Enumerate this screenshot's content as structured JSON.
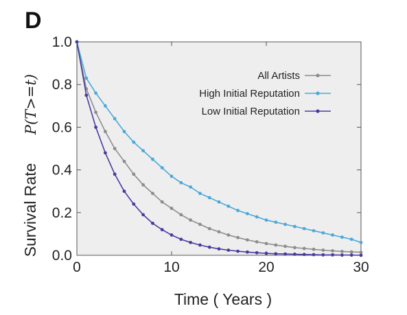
{
  "panel_label": "D",
  "chart_data": {
    "type": "line",
    "xlabel": "Time ( Years )",
    "ylabel": "Survival Rate",
    "ylabel_math": "P(T>=t)",
    "xlim": [
      0,
      30
    ],
    "ylim": [
      0,
      1
    ],
    "xticks": [
      "0",
      "10",
      "20",
      "30"
    ],
    "yticks": [
      "0.0",
      "0.2",
      "0.4",
      "0.6",
      "0.8",
      "1.0"
    ],
    "grid": false,
    "legend_position": "top-right",
    "series": [
      {
        "name": "All Artists",
        "color": "#8c8c8c",
        "x": [
          0,
          1,
          2,
          3,
          4,
          5,
          6,
          7,
          8,
          9,
          10,
          11,
          12,
          13,
          14,
          15,
          16,
          17,
          18,
          19,
          20,
          21,
          22,
          23,
          24,
          25,
          26,
          27,
          28,
          29,
          30
        ],
        "values": [
          1.0,
          0.78,
          0.67,
          0.58,
          0.5,
          0.44,
          0.38,
          0.33,
          0.29,
          0.25,
          0.22,
          0.19,
          0.165,
          0.145,
          0.125,
          0.11,
          0.095,
          0.083,
          0.072,
          0.063,
          0.055,
          0.048,
          0.042,
          0.036,
          0.032,
          0.028,
          0.024,
          0.021,
          0.018,
          0.016,
          0.014
        ]
      },
      {
        "name": "High Initial Reputation",
        "color": "#4aa8d8",
        "x": [
          0,
          1,
          2,
          3,
          4,
          5,
          6,
          7,
          8,
          9,
          10,
          11,
          12,
          13,
          14,
          15,
          16,
          17,
          18,
          19,
          20,
          21,
          22,
          23,
          24,
          25,
          26,
          27,
          28,
          29,
          30
        ],
        "values": [
          1.0,
          0.83,
          0.76,
          0.7,
          0.64,
          0.58,
          0.53,
          0.49,
          0.45,
          0.41,
          0.37,
          0.34,
          0.32,
          0.29,
          0.27,
          0.25,
          0.23,
          0.21,
          0.195,
          0.18,
          0.165,
          0.155,
          0.145,
          0.135,
          0.125,
          0.115,
          0.105,
          0.095,
          0.085,
          0.075,
          0.06
        ]
      },
      {
        "name": "Low Initial Reputation",
        "color": "#4a3aa0",
        "x": [
          0,
          1,
          2,
          3,
          4,
          5,
          6,
          7,
          8,
          9,
          10,
          11,
          12,
          13,
          14,
          15,
          16,
          17,
          18,
          19,
          20,
          21,
          22,
          23,
          24,
          25,
          26,
          27,
          28,
          29,
          30
        ],
        "values": [
          1.0,
          0.75,
          0.6,
          0.48,
          0.38,
          0.3,
          0.24,
          0.19,
          0.15,
          0.12,
          0.095,
          0.075,
          0.06,
          0.048,
          0.038,
          0.03,
          0.024,
          0.019,
          0.015,
          0.012,
          0.009,
          0.007,
          0.006,
          0.005,
          0.004,
          0.003,
          0.002,
          0.002,
          0.001,
          0.001,
          0.0
        ]
      }
    ]
  }
}
